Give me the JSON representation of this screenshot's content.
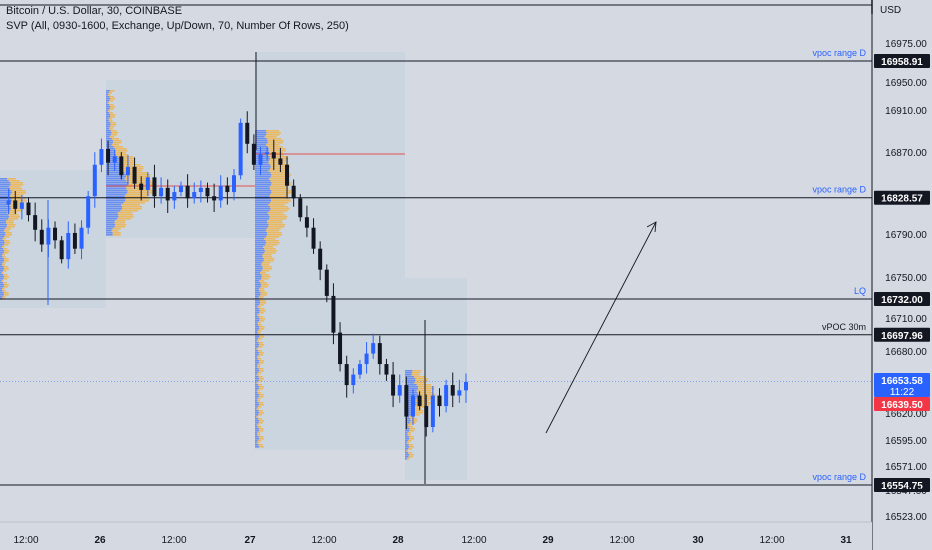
{
  "header": {
    "symbol_line": "Bitcoin / U.S. Dollar, 30, COINBASE",
    "indicator_line": "SVP (All, 0930-1600, Exchange, Up/Down, 70, Number Of Rows, 250)"
  },
  "price_axis": {
    "currency": "USD",
    "ticks": [
      "16975.00",
      "16950.00",
      "16910.00",
      "16870.00",
      "16790.00",
      "16750.00",
      "16710.00",
      "16680.00",
      "16620.00",
      "16595.00",
      "16571.00",
      "16547.00",
      "16523.00"
    ]
  },
  "time_axis": {
    "ticks": [
      "12:00",
      "26",
      "12:00",
      "27",
      "12:00",
      "28",
      "12:00",
      "29",
      "12:00",
      "30",
      "12:00",
      "31"
    ]
  },
  "levels": [
    {
      "label": "vpoc range D",
      "price": "16958.91"
    },
    {
      "label": "vpoc range D",
      "price": "16828.57"
    },
    {
      "label": "LQ",
      "price": "16732.00"
    },
    {
      "label": "vPOC 30m",
      "price": "16697.96"
    },
    {
      "label": "vpoc range D",
      "price": "16554.75"
    }
  ],
  "current_price": {
    "price": "16653.58",
    "countdown": "11:22",
    "color": "#2962ff"
  },
  "secondary_price": {
    "price": "16639.50",
    "color": "#f23645"
  },
  "colors": {
    "up": "#2962ff",
    "down": "#131722",
    "background": "#d5dae2",
    "profile_up": "#5a82f0",
    "profile_down": "#f0b34a",
    "box_fill": "#c6d3e0",
    "level_label_blue": "#2962ff"
  },
  "chart_data": {
    "type": "candlestick",
    "title": "Bitcoin / U.S. Dollar, 30, COINBASE",
    "ylim": [
      16515,
      16995
    ],
    "x_ticks": [
      "12:00",
      "26",
      "12:00",
      "27",
      "12:00",
      "28",
      "12:00",
      "29",
      "12:00",
      "30",
      "12:00",
      "31"
    ],
    "price_path": [
      16822,
      16826,
      16818,
      16824,
      16812,
      16798,
      16784,
      16800,
      16788,
      16770,
      16795,
      16780,
      16800,
      16830,
      16860,
      16875,
      16862,
      16868,
      16850,
      16858,
      16842,
      16836,
      16848,
      16830,
      16838,
      16826,
      16834,
      16840,
      16828,
      16834,
      16838,
      16830,
      16826,
      16840,
      16834,
      16850,
      16900,
      16880,
      16860,
      16870,
      16872,
      16866,
      16860,
      16840,
      16828,
      16810,
      16800,
      16780,
      16760,
      16735,
      16700,
      16670,
      16650,
      16660,
      16670,
      16680,
      16690,
      16670,
      16660,
      16640,
      16650,
      16620,
      16640,
      16630,
      16610,
      16640,
      16630,
      16650,
      16640,
      16645,
      16653
    ],
    "price_path_note_units": "USD",
    "anomaly": []
  }
}
